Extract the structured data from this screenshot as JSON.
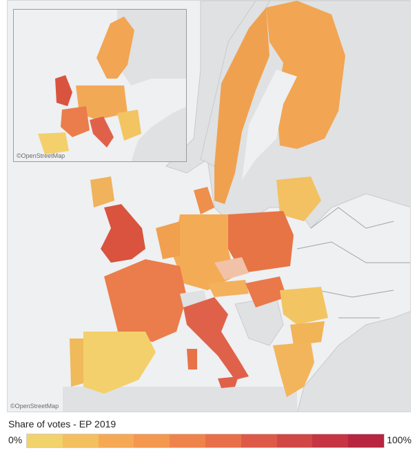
{
  "map": {
    "attribution": "©OpenStreetMap",
    "inset_attribution": "©OpenStreetMap"
  },
  "legend": {
    "title": "Share of votes - EP 2019",
    "min_label": "0%",
    "max_label": "100%",
    "colors": [
      "#f2d36b",
      "#f4bf5e",
      "#f5a955",
      "#f4974f",
      "#ef834c",
      "#e86f4a",
      "#dd5a48",
      "#d14746",
      "#c53544",
      "#b72540"
    ]
  }
}
